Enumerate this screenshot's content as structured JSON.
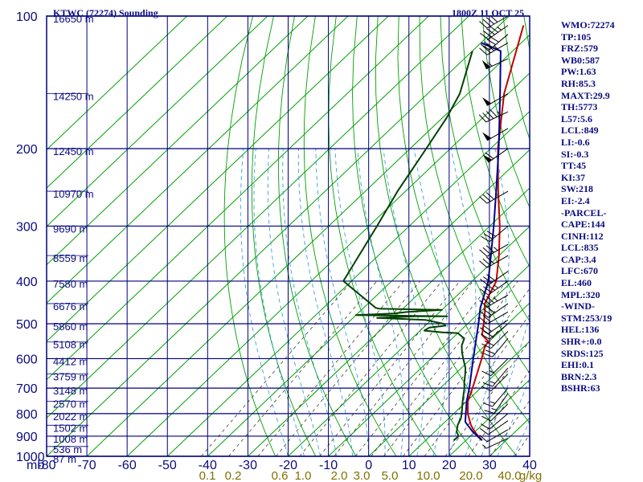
{
  "header": {
    "station": "KTWC (72274) Sounding",
    "time": "1800Z 11 OCT 25"
  },
  "indices": [
    "WMO:72274",
    "TP:105",
    "FRZ:579",
    "WB0:587",
    "PW:1.63",
    "RH:85.3",
    "MAXT:29.9",
    "TH:5773",
    "L57:5.6",
    "LCL:849",
    "LI:-0.6",
    "SI:-0.3",
    "TT:45",
    "KI:37",
    "SW:218",
    "EI:-2.4",
    "-PARCEL-",
    "CAPE:144",
    "CINH:112",
    "LCL:835",
    "CAP:3.4",
    "LFC:670",
    "EL:460",
    "MPL:320",
    "-WIND-",
    "STM:253/19",
    "HEL:136",
    "SHR+:0.0",
    "SRDS:125",
    "EHI:0.1",
    "BRN:2.3",
    "BSHR:63"
  ],
  "chart_data": {
    "type": "line",
    "title": "KTWC (72274) Sounding",
    "subtitle": "1800Z 11 OCT 25",
    "xlabel": "",
    "ylabel": "mb",
    "xlim": [
      -80,
      40
    ],
    "ylim": [
      1000,
      100
    ],
    "y_scale": "log",
    "skew": "skew-T",
    "grid": true,
    "pressure_ticks": [
      100,
      200,
      300,
      400,
      500,
      600,
      700,
      800,
      900,
      1000
    ],
    "temperature_ticks": [
      -80,
      -70,
      -60,
      -50,
      -40,
      -30,
      -20,
      -10,
      0,
      10,
      20,
      30,
      40
    ],
    "mixing_ratio_ticks": [
      "0.1",
      "0.2",
      "0.6",
      "1.0",
      "2.0",
      "3.0",
      "5.0",
      "10.0",
      "20.0",
      "40.0"
    ],
    "mixing_ratio_unit": "g/kg",
    "height_labels": [
      {
        "p": 100,
        "label": "16650 m"
      },
      {
        "p": 150,
        "label": "14250 m"
      },
      {
        "p": 200,
        "label": "12450 m"
      },
      {
        "p": 250,
        "label": "10970 m"
      },
      {
        "p": 300,
        "label": "9690 m"
      },
      {
        "p": 350,
        "label": "8559 m"
      },
      {
        "p": 400,
        "label": "7580 m"
      },
      {
        "p": 450,
        "label": "6676 m"
      },
      {
        "p": 500,
        "label": "5860 m"
      },
      {
        "p": 550,
        "label": "5108 m"
      },
      {
        "p": 600,
        "label": "4412 m"
      },
      {
        "p": 650,
        "label": "3759 m"
      },
      {
        "p": 700,
        "label": "3148 m"
      },
      {
        "p": 750,
        "label": "2570 m"
      },
      {
        "p": 800,
        "label": "2022 m"
      },
      {
        "p": 850,
        "label": "1502 m"
      },
      {
        "p": 900,
        "label": "1008 m"
      },
      {
        "p": 950,
        "label": "536 m"
      },
      {
        "p": 1000,
        "label": "87 m"
      }
    ],
    "series": [
      {
        "key": "temperature",
        "color": "#c00000",
        "points": [
          [
            920,
            24
          ],
          [
            880,
            20
          ],
          [
            850,
            17.3
          ],
          [
            800,
            13.5
          ],
          [
            750,
            10.3
          ],
          [
            700,
            8
          ],
          [
            650,
            5.4
          ],
          [
            600,
            2.6
          ],
          [
            560,
            0
          ],
          [
            550,
            0
          ],
          [
            530,
            -3.5
          ],
          [
            500,
            -6
          ],
          [
            470,
            -8.8
          ],
          [
            450,
            -11
          ],
          [
            400,
            -14
          ],
          [
            350,
            -20
          ],
          [
            300,
            -27.5
          ],
          [
            250,
            -37
          ],
          [
            200,
            -48.2
          ],
          [
            150,
            -61
          ],
          [
            105,
            -74
          ]
        ]
      },
      {
        "key": "dewpoint",
        "color": "#004000",
        "points": [
          [
            920,
            17
          ],
          [
            900,
            17.1
          ],
          [
            880,
            15.5
          ],
          [
            850,
            14
          ],
          [
            820,
            13
          ],
          [
            800,
            12
          ],
          [
            750,
            9
          ],
          [
            700,
            6
          ],
          [
            680,
            4.5
          ],
          [
            650,
            2.5
          ],
          [
            630,
            1
          ],
          [
            600,
            -2
          ],
          [
            580,
            -4
          ],
          [
            560,
            -5.8
          ],
          [
            540,
            -7
          ],
          [
            525,
            -10
          ],
          [
            523,
            -14
          ],
          [
            518,
            -19
          ],
          [
            510,
            -18.5
          ],
          [
            505,
            -15
          ],
          [
            500,
            -16
          ],
          [
            490,
            -21.5
          ],
          [
            485,
            -34
          ],
          [
            481,
            -25
          ],
          [
            481,
            -17
          ],
          [
            478,
            -40
          ],
          [
            474,
            -31
          ],
          [
            470,
            -28
          ],
          [
            465,
            -20
          ],
          [
            462,
            -36
          ],
          [
            460,
            -37
          ],
          [
            400,
            -52
          ],
          [
            300,
            -58
          ],
          [
            250,
            -62
          ],
          [
            200,
            -66
          ],
          [
            170,
            -69
          ],
          [
            150,
            -72
          ],
          [
            120,
            -80
          ]
        ]
      },
      {
        "key": "parcel",
        "color": "#000090",
        "points": [
          [
            920,
            24
          ],
          [
            880,
            19.5
          ],
          [
            850,
            16.5
          ],
          [
            835,
            15
          ],
          [
            800,
            13
          ],
          [
            750,
            10
          ],
          [
            700,
            7.2
          ],
          [
            670,
            5.3
          ],
          [
            600,
            0.5
          ],
          [
            500,
            -7.3
          ],
          [
            460,
            -11
          ],
          [
            400,
            -16
          ],
          [
            350,
            -22
          ],
          [
            300,
            -29
          ],
          [
            250,
            -37.5
          ],
          [
            200,
            -48
          ],
          [
            150,
            -62
          ],
          [
            120,
            -73
          ],
          [
            115,
            -80
          ]
        ]
      }
    ],
    "wind_barbs": [
      {
        "p": 100,
        "dir": 240,
        "kt": 40
      },
      {
        "p": 105,
        "dir": 235,
        "kt": 45
      },
      {
        "p": 110,
        "dir": 230,
        "kt": 40
      },
      {
        "p": 115,
        "dir": 240,
        "kt": 35
      },
      {
        "p": 125,
        "dir": 245,
        "kt": 55
      },
      {
        "p": 150,
        "dir": 240,
        "kt": 50
      },
      {
        "p": 165,
        "dir": 245,
        "kt": 45
      },
      {
        "p": 180,
        "dir": 240,
        "kt": 50
      },
      {
        "p": 200,
        "dir": 235,
        "kt": 60
      },
      {
        "p": 250,
        "dir": 240,
        "kt": 30
      },
      {
        "p": 300,
        "dir": 230,
        "kt": 30
      },
      {
        "p": 330,
        "dir": 240,
        "kt": 35
      },
      {
        "p": 350,
        "dir": 240,
        "kt": 30
      },
      {
        "p": 380,
        "dir": 235,
        "kt": 30
      },
      {
        "p": 400,
        "dir": 235,
        "kt": 35
      },
      {
        "p": 430,
        "dir": 240,
        "kt": 35
      },
      {
        "p": 450,
        "dir": 235,
        "kt": 30
      },
      {
        "p": 470,
        "dir": 240,
        "kt": 20
      },
      {
        "p": 490,
        "dir": 235,
        "kt": 20
      },
      {
        "p": 500,
        "dir": 230,
        "kt": 20
      },
      {
        "p": 520,
        "dir": 225,
        "kt": 20
      },
      {
        "p": 540,
        "dir": 220,
        "kt": 20
      },
      {
        "p": 600,
        "dir": 225,
        "kt": 15
      },
      {
        "p": 630,
        "dir": 220,
        "kt": 15
      },
      {
        "p": 650,
        "dir": 225,
        "kt": 10
      },
      {
        "p": 700,
        "dir": 220,
        "kt": 15
      },
      {
        "p": 720,
        "dir": 215,
        "kt": 15
      },
      {
        "p": 760,
        "dir": 225,
        "kt": 10
      },
      {
        "p": 800,
        "dir": 230,
        "kt": 10
      },
      {
        "p": 830,
        "dir": 235,
        "kt": 10
      },
      {
        "p": 870,
        "dir": 240,
        "kt": 10
      },
      {
        "p": 910,
        "dir": 245,
        "kt": 5
      }
    ]
  }
}
